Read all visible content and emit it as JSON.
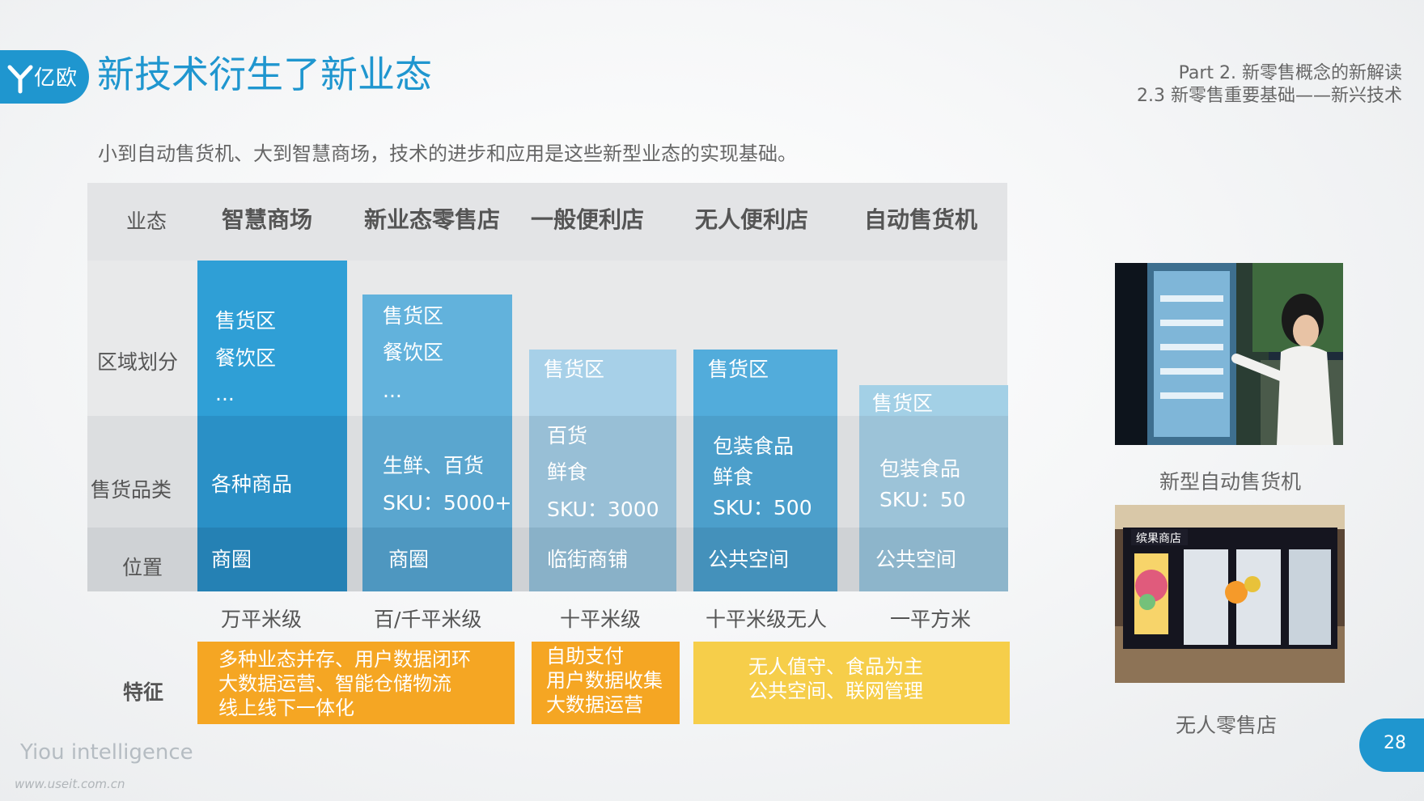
{
  "header": {
    "logo_text": "亿欧",
    "title": "新技术衍生了新业态",
    "part": "Part 2. 新零售概念的新解读",
    "section": "2.3 新零售重要基础——新兴技术"
  },
  "subtitle": "小到自动售货机、大到智慧商场，技术的进步和应用是这些新型业态的实现基础。",
  "table": {
    "header_label": "业态",
    "columns": [
      "智慧商场",
      "新业态零售店",
      "一般便利店",
      "无人便利店",
      "自动售货机"
    ],
    "row_labels": {
      "region": "区域划分",
      "goods": "售货品类",
      "location": "位置",
      "feature": "特征"
    },
    "region": [
      [
        "售货区",
        "餐饮区",
        "..."
      ],
      [
        "售货区",
        "餐饮区",
        "..."
      ],
      [
        "售货区"
      ],
      [
        "售货区"
      ],
      [
        "售货区"
      ]
    ],
    "goods": [
      [
        "各种商品"
      ],
      [
        "生鲜、百货",
        "SKU：5000+"
      ],
      [
        "百货",
        "鲜食",
        "SKU：3000"
      ],
      [
        "包装食品",
        "鲜食",
        "SKU：500"
      ],
      [
        "包装食品",
        "SKU：50"
      ]
    ],
    "location": [
      "商圈",
      "商圈",
      "临街商铺",
      "公共空间",
      "公共空间"
    ],
    "size": [
      "万平米级",
      "百/千平米级",
      "十平米级",
      "十平米级无人",
      "一平方米"
    ],
    "features": [
      [
        "多种业态并存、用户数据闭环",
        "大数据运营、智能仓储物流",
        "线上线下一体化"
      ],
      [
        "自助支付",
        "用户数据收集",
        "大数据运营"
      ],
      [
        "无人值守、食品为主",
        "公共空间、联网管理"
      ]
    ]
  },
  "photos": {
    "caption1": "新型自动售货机",
    "caption2": "无人零售店",
    "store_sign": "缤果商店"
  },
  "footer": {
    "brand": "Yiou intelligence",
    "url": "www.useit.com.cn",
    "page": "28"
  },
  "colors": {
    "accent": "#1f96cf",
    "orange": "#f5a623",
    "yellow": "#f6ce4a"
  }
}
